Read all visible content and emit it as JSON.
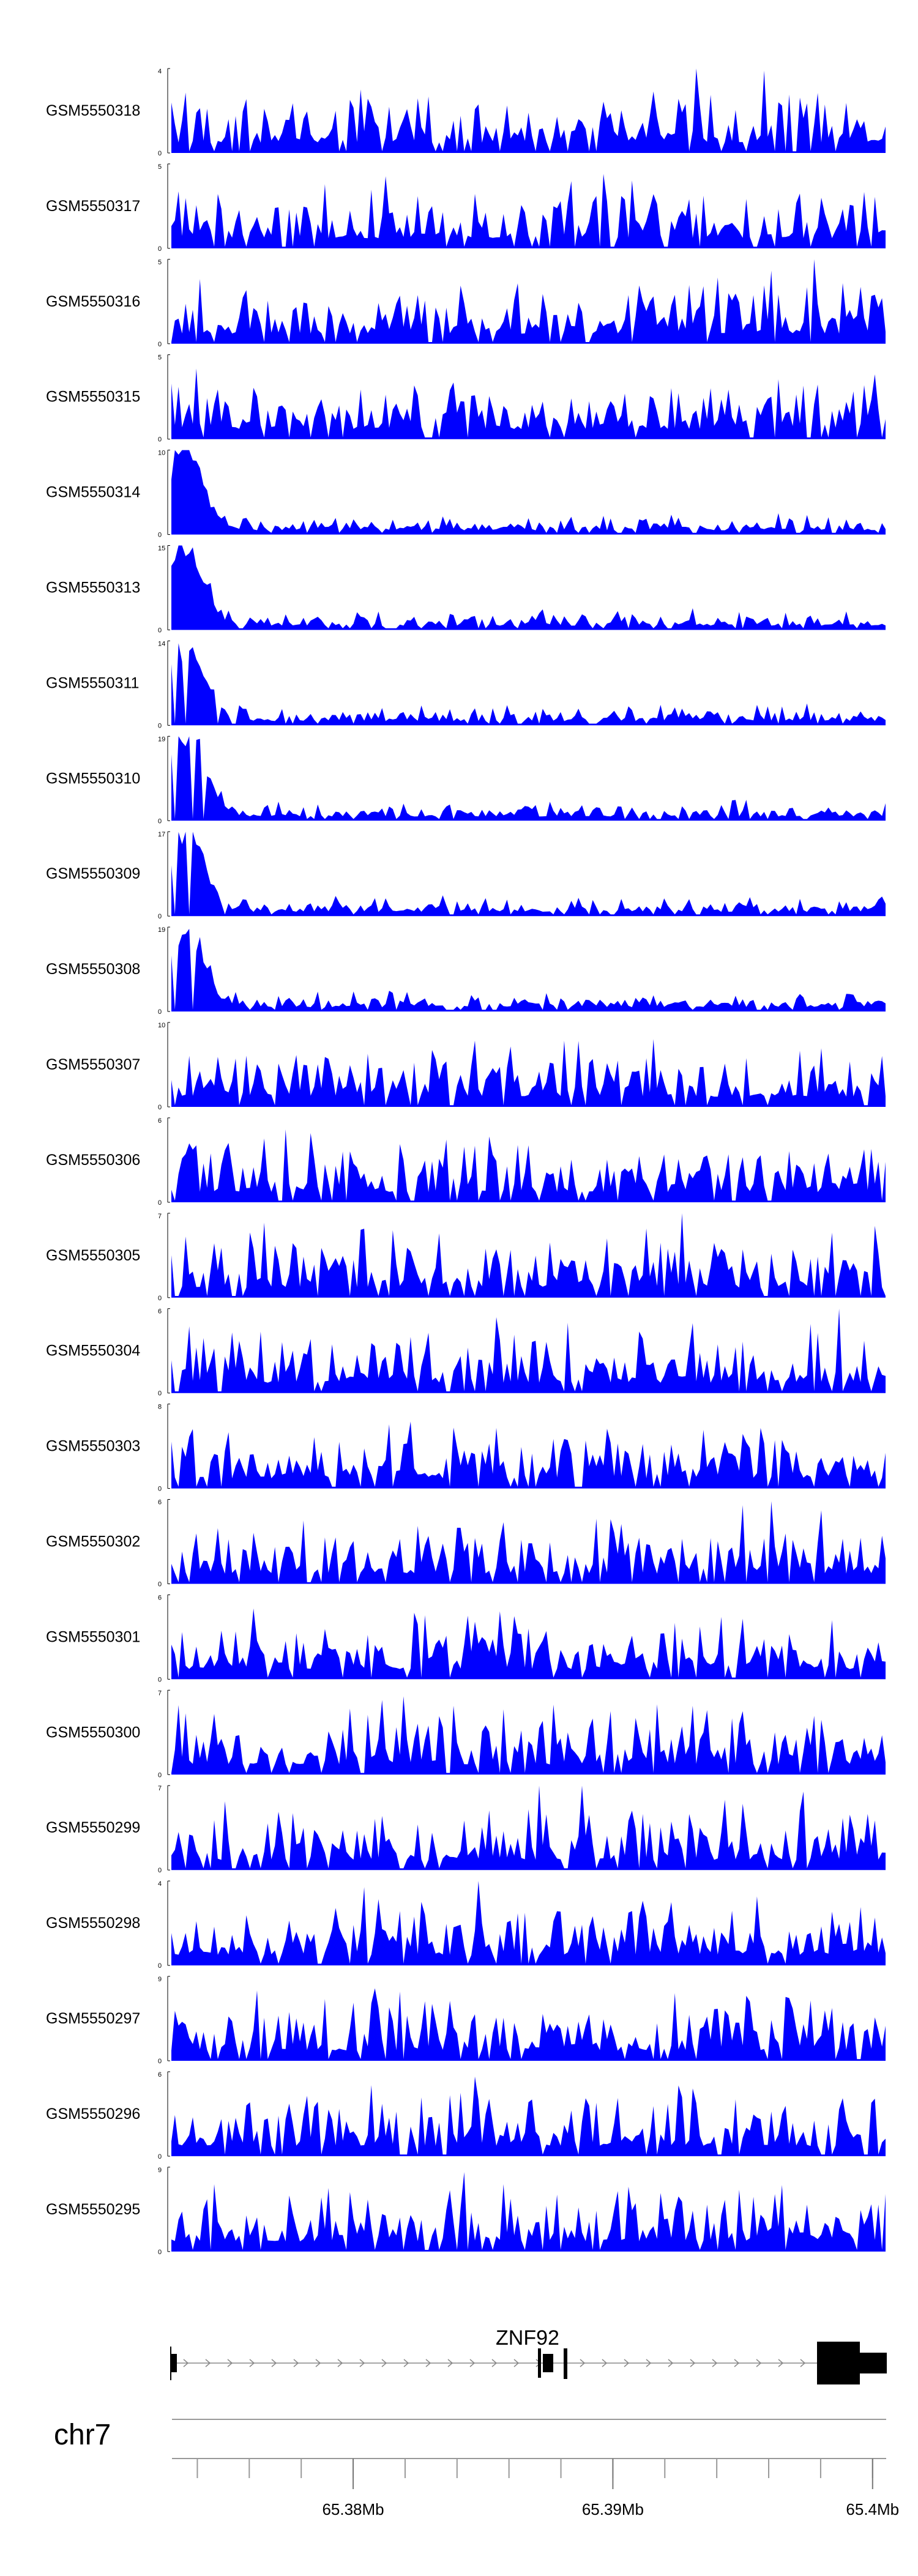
{
  "chart_data": {
    "type": "area",
    "chromosome": "chr7",
    "x_range": [
      65.373,
      65.4005
    ],
    "track_color": "#0000FF",
    "tracks": [
      {
        "name": "GSM5550318",
        "ymax": 4
      },
      {
        "name": "GSM5550317",
        "ymax": 5
      },
      {
        "name": "GSM5550316",
        "ymax": 5
      },
      {
        "name": "GSM5550315",
        "ymax": 5
      },
      {
        "name": "GSM5550314",
        "ymax": 10
      },
      {
        "name": "GSM5550313",
        "ymax": 15
      },
      {
        "name": "GSM5550311",
        "ymax": 14
      },
      {
        "name": "GSM5550310",
        "ymax": 19
      },
      {
        "name": "GSM5550309",
        "ymax": 17
      },
      {
        "name": "GSM5550308",
        "ymax": 19
      },
      {
        "name": "GSM5550307",
        "ymax": 10
      },
      {
        "name": "GSM5550306",
        "ymax": 6
      },
      {
        "name": "GSM5550305",
        "ymax": 7
      },
      {
        "name": "GSM5550304",
        "ymax": 6
      },
      {
        "name": "GSM5550303",
        "ymax": 8
      },
      {
        "name": "GSM5550302",
        "ymax": 6
      },
      {
        "name": "GSM5550301",
        "ymax": 6
      },
      {
        "name": "GSM5550300",
        "ymax": 7
      },
      {
        "name": "GSM5550299",
        "ymax": 7
      },
      {
        "name": "GSM5550298",
        "ymax": 4
      },
      {
        "name": "GSM5550297",
        "ymax": 9
      },
      {
        "name": "GSM5550296",
        "ymax": 6
      },
      {
        "name": "GSM5550295",
        "ymax": 9
      }
    ],
    "gene": {
      "name": "ZNF92",
      "strand": "+"
    },
    "x_ticks": [
      {
        "value": 65.38,
        "label": "65.38Mb"
      },
      {
        "value": 65.39,
        "label": "65.39Mb"
      },
      {
        "value": 65.4,
        "label": "65.4Mb"
      }
    ]
  }
}
